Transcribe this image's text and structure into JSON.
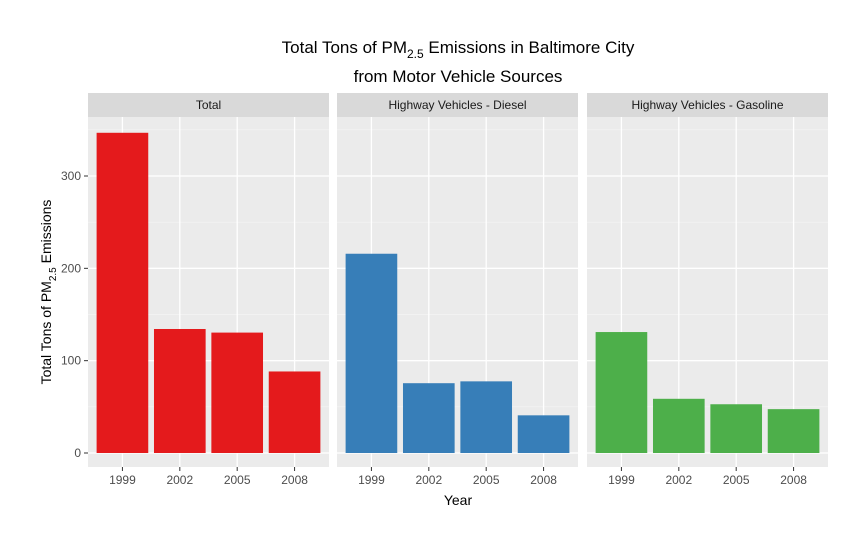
{
  "chart_data": {
    "type": "bar",
    "title": {
      "line1_prefix": "Total Tons of PM",
      "line1_sub": "2.5",
      "line1_suffix": " Emissions in Baltimore City",
      "line2": "from Motor Vehicle Sources"
    },
    "xlabel": "Year",
    "ylabel": {
      "prefix": "Total Tons of PM",
      "sub": "2.5",
      "suffix": " Emissions"
    },
    "ylim": [
      0,
      360
    ],
    "yticks": [
      0,
      100,
      200,
      300
    ],
    "categories": [
      "1999",
      "2002",
      "2005",
      "2008"
    ],
    "grid": true,
    "panels": [
      {
        "name": "Total",
        "color": "#E41A1C",
        "values": [
          346.8,
          134.3,
          130.4,
          88.3
        ]
      },
      {
        "name": "Highway Vehicles - Diesel",
        "color": "#377EB8",
        "values": [
          215.8,
          75.6,
          77.6,
          40.8
        ]
      },
      {
        "name": "Highway Vehicles - Gasoline",
        "color": "#4DAF4A",
        "values": [
          131.0,
          58.7,
          52.8,
          47.5
        ]
      }
    ]
  }
}
